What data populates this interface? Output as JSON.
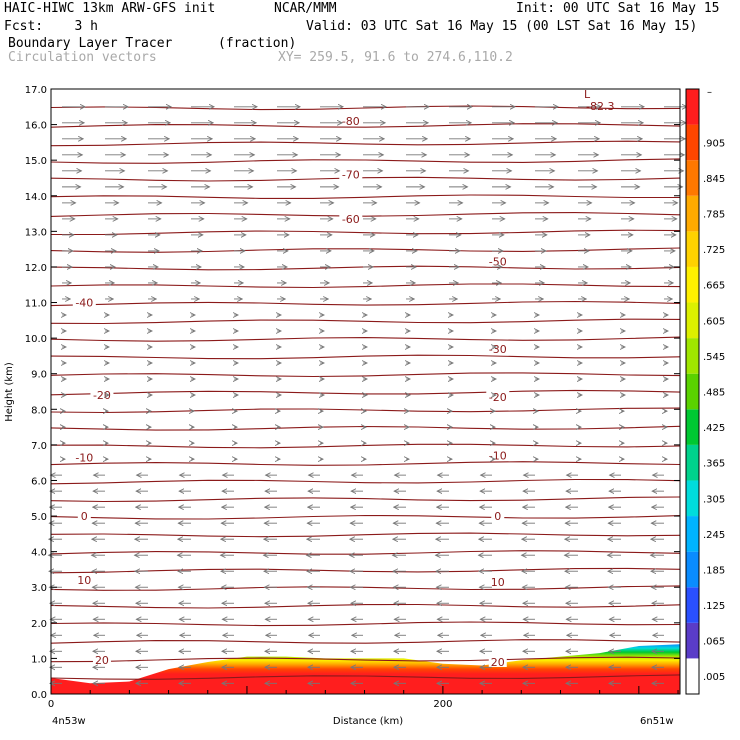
{
  "header": {
    "model": "HAIC-HIWC 13km ARW-GFS init",
    "org": "NCAR/MMM",
    "init": "Init: 00 UTC Sat 16 May 15",
    "fcst": "Fcst:    3 h",
    "valid": "Valid: 03 UTC Sat 16 May 15 (00 LST Sat 16 May 15)",
    "field": "Boundary Layer Tracer",
    "units": "(fraction)",
    "field2": "Circulation vectors",
    "xy": "XY= 259.5, 91.6 to 274.6,110.2"
  },
  "chart_data": {
    "type": "heatmap",
    "title": "Boundary Layer Tracer",
    "units": "(fraction)",
    "ylabel": "Height (km)",
    "xlabel": "Distance (km)",
    "ylim": [
      0,
      17
    ],
    "xlim": [
      0,
      321
    ],
    "y_ticks": [
      "0.0",
      "1.0",
      "2.0",
      "3.0",
      "4.0",
      "5.0",
      "6.0",
      "7.0",
      "8.0",
      "9.0",
      "10.0",
      "11.0",
      "12.0",
      "13.0",
      "14.0",
      "15.0",
      "16.0",
      "17.0"
    ],
    "x_ticks": [
      {
        "value": 0,
        "label": "0"
      },
      {
        "value": 200,
        "label": "200"
      }
    ],
    "x_endpoints": {
      "left": "4n53w",
      "right": "6n51w"
    },
    "colorbar": {
      "labels": [
        ".005",
        ".065",
        ".125",
        ".185",
        ".245",
        ".305",
        ".365",
        ".425",
        ".485",
        ".545",
        ".605",
        ".665",
        ".725",
        ".785",
        ".845",
        ".905"
      ],
      "top_label": "–",
      "colors": [
        "#ffffff",
        "#5a3cc8",
        "#2a50ff",
        "#0a8cff",
        "#00b4ff",
        "#00dcdc",
        "#00d28c",
        "#00c832",
        "#5ad200",
        "#a0e600",
        "#dcf000",
        "#fff000",
        "#ffd200",
        "#ffaa00",
        "#ff7800",
        "#ff4600",
        "#ff1e1e"
      ]
    },
    "contour_label": {
      "text": "L",
      "value": "-82.3"
    },
    "temperature_contours": {
      "levels_c": [
        -80,
        -70,
        -60,
        -50,
        -40,
        -30,
        -20,
        -10,
        0,
        10,
        20
      ],
      "labels": [
        {
          "text": "-80",
          "x": 153,
          "y": 16.1
        },
        {
          "text": "-70",
          "x": 153,
          "y": 14.6
        },
        {
          "text": "-60",
          "x": 153,
          "y": 13.35
        },
        {
          "text": "-50",
          "x": 228,
          "y": 12.15
        },
        {
          "text": "-40",
          "x": 17,
          "y": 11.0
        },
        {
          "text": "-30",
          "x": 228,
          "y": 9.7
        },
        {
          "text": "-20",
          "x": 26,
          "y": 8.4
        },
        {
          "text": "-20",
          "x": 228,
          "y": 8.35
        },
        {
          "text": "-10",
          "x": 17,
          "y": 6.65
        },
        {
          "text": "-10",
          "x": 228,
          "y": 6.7
        },
        {
          "text": "0",
          "x": 17,
          "y": 5.0
        },
        {
          "text": "0",
          "x": 228,
          "y": 5.0
        },
        {
          "text": "10",
          "x": 17,
          "y": 3.2
        },
        {
          "text": "10",
          "x": 228,
          "y": 3.15
        },
        {
          "text": "20",
          "x": 26,
          "y": 0.95
        },
        {
          "text": "20",
          "x": 228,
          "y": 0.9
        }
      ]
    },
    "tracer_top_km": {
      "x": [
        0,
        20,
        40,
        60,
        80,
        100,
        120,
        140,
        160,
        180,
        200,
        220,
        240,
        260,
        280,
        300,
        321
      ],
      "y": [
        0.45,
        0.3,
        0.35,
        0.7,
        0.9,
        1.05,
        1.05,
        1.0,
        1.0,
        1.0,
        0.85,
        0.8,
        0.95,
        1.05,
        1.15,
        1.35,
        1.4
      ]
    }
  }
}
